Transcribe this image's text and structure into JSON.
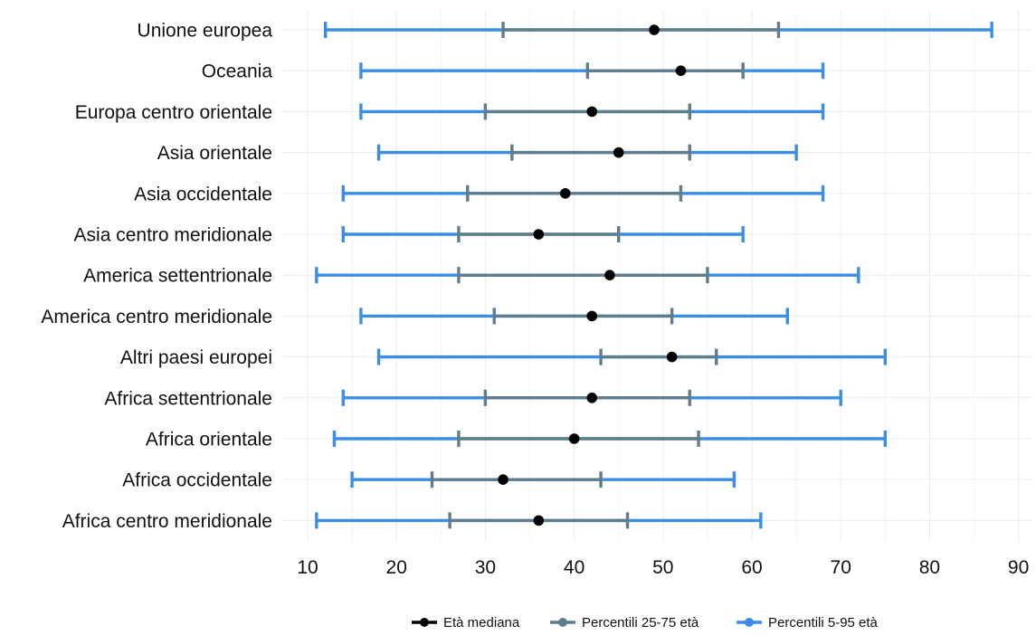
{
  "chart_data": {
    "type": "errorbar",
    "categories": [
      "Unione europea",
      "Oceania",
      "Europa centro orientale",
      "Asia orientale",
      "Asia occidentale",
      "Asia centro meridionale",
      "America settentrionale",
      "America centro meridionale",
      "Altri paesi europei",
      "Africa settentrionale",
      "Africa orientale",
      "Africa occidentale",
      "Africa centro meridionale"
    ],
    "series": [
      {
        "name": "Percentili 5-95 età",
        "color": "#3a8ee6",
        "low": [
          12,
          16,
          16,
          18,
          14,
          14,
          11,
          16,
          18,
          14,
          13,
          15,
          11
        ],
        "high": [
          87,
          68,
          68,
          65,
          68,
          59,
          72,
          64,
          75,
          70,
          75,
          58,
          61
        ]
      },
      {
        "name": "Percentili 25-75 età",
        "color": "#607d8b",
        "low": [
          32,
          41.5,
          30,
          33,
          28,
          27,
          27,
          31,
          43,
          30,
          27,
          24,
          26
        ],
        "high": [
          63,
          59,
          53,
          53,
          52,
          45,
          55,
          51,
          56,
          53,
          54,
          43,
          46
        ]
      },
      {
        "name": "Età mediana",
        "color": "#000000",
        "values": [
          49,
          52,
          42,
          45,
          39,
          36,
          44,
          42,
          51,
          42,
          40,
          32,
          36
        ]
      }
    ],
    "x_ticks": [
      10,
      20,
      30,
      40,
      50,
      60,
      70,
      80,
      90
    ],
    "xlim": [
      8,
      91
    ],
    "grid": true,
    "legend_position": "bottom",
    "legend": [
      {
        "label": "Età mediana",
        "color": "#000000"
      },
      {
        "label": "Percentili 25-75 età",
        "color": "#607d8b"
      },
      {
        "label": "Percentili 5-95 età",
        "color": "#3a8ee6"
      }
    ],
    "title": "",
    "xlabel": "",
    "ylabel": ""
  }
}
